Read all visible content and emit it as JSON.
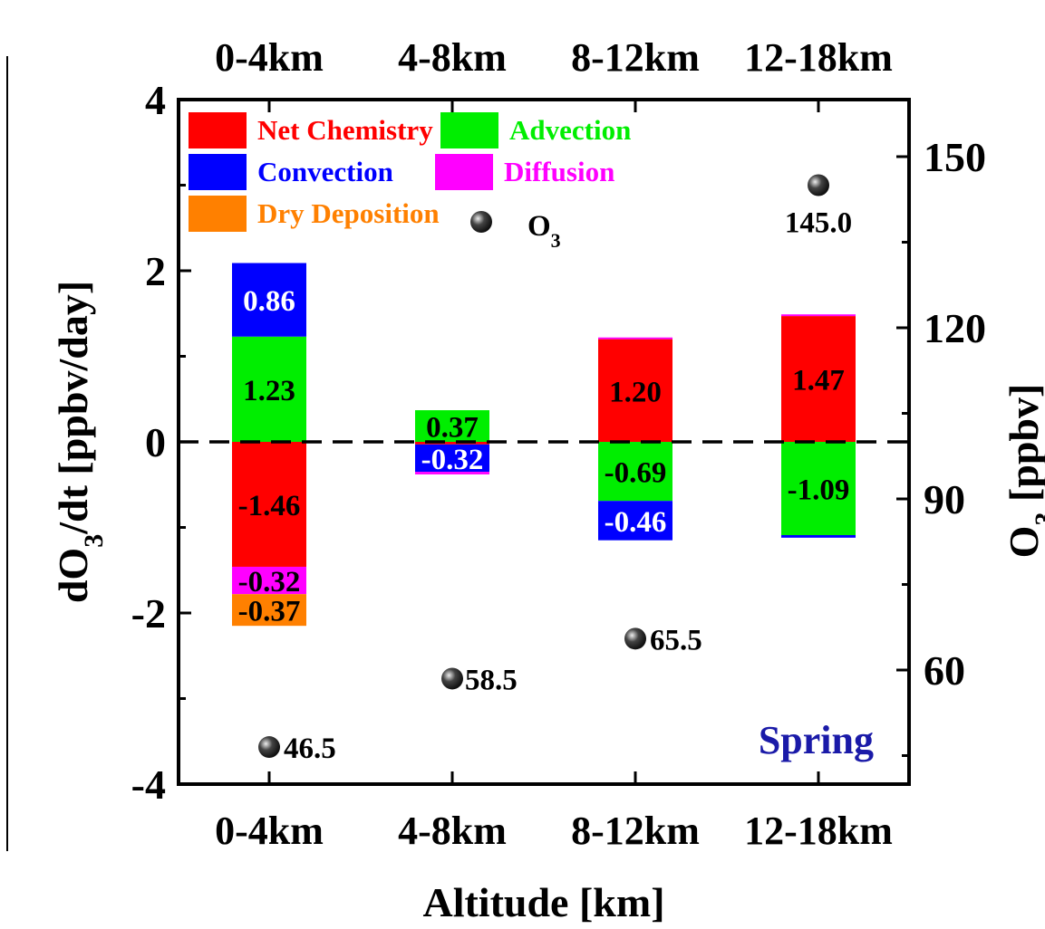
{
  "chart_data": {
    "type": "bar",
    "stacked": true,
    "categories": [
      "0-4km",
      "4-8km",
      "8-12km",
      "12-18km"
    ],
    "top_categories": [
      "0-4km",
      "4-8km",
      "8-12km",
      "12-18km"
    ],
    "xlabel": "Altitude [km]",
    "ylabel": "dO3/dt [ppbv/day]",
    "y2label": "O3 [ppbv]",
    "ylim": [
      -4,
      4
    ],
    "y2lim": [
      40,
      160
    ],
    "yticks": [
      "-4",
      "-2",
      "0",
      "2",
      "4"
    ],
    "y2ticks": [
      "60",
      "90",
      "120",
      "150"
    ],
    "annotation": "Spring",
    "series": [
      {
        "name": "Net Chemistry",
        "color": "#ff0000",
        "values": [
          -1.46,
          -0.03,
          1.2,
          1.47
        ],
        "labels": [
          "-1.46",
          "",
          "1.20",
          "1.47"
        ]
      },
      {
        "name": "Advection",
        "color": "#00ee00",
        "values": [
          1.23,
          0.37,
          -0.69,
          -1.09
        ],
        "labels": [
          "1.23",
          "0.37",
          "-0.69",
          "-1.09"
        ]
      },
      {
        "name": "Convection",
        "color": "#0000ff",
        "values": [
          0.86,
          -0.32,
          -0.46,
          -0.03
        ],
        "labels": [
          "0.86",
          "-0.32",
          "-0.46",
          ""
        ]
      },
      {
        "name": "Diffusion",
        "color": "#ff00ff",
        "values": [
          -0.32,
          -0.03,
          0.02,
          0.02
        ],
        "labels": [
          "-0.32",
          "",
          "",
          ""
        ]
      },
      {
        "name": "Dry Deposition",
        "color": "#ff8000",
        "values": [
          -0.37,
          0,
          0,
          0
        ],
        "labels": [
          "-0.37",
          "",
          "",
          ""
        ]
      }
    ],
    "o3_series": {
      "name": "O3",
      "values": [
        46.5,
        58.5,
        65.5,
        145.0
      ],
      "labels": [
        "46.5",
        "58.5",
        "65.5",
        "145.0"
      ]
    }
  },
  "legend": {
    "o3_label": "O",
    "o3_subscript": "3"
  },
  "colors": {
    "zero_line": "#000000",
    "annotation": "#1a1aa8",
    "marker": "#111111"
  }
}
